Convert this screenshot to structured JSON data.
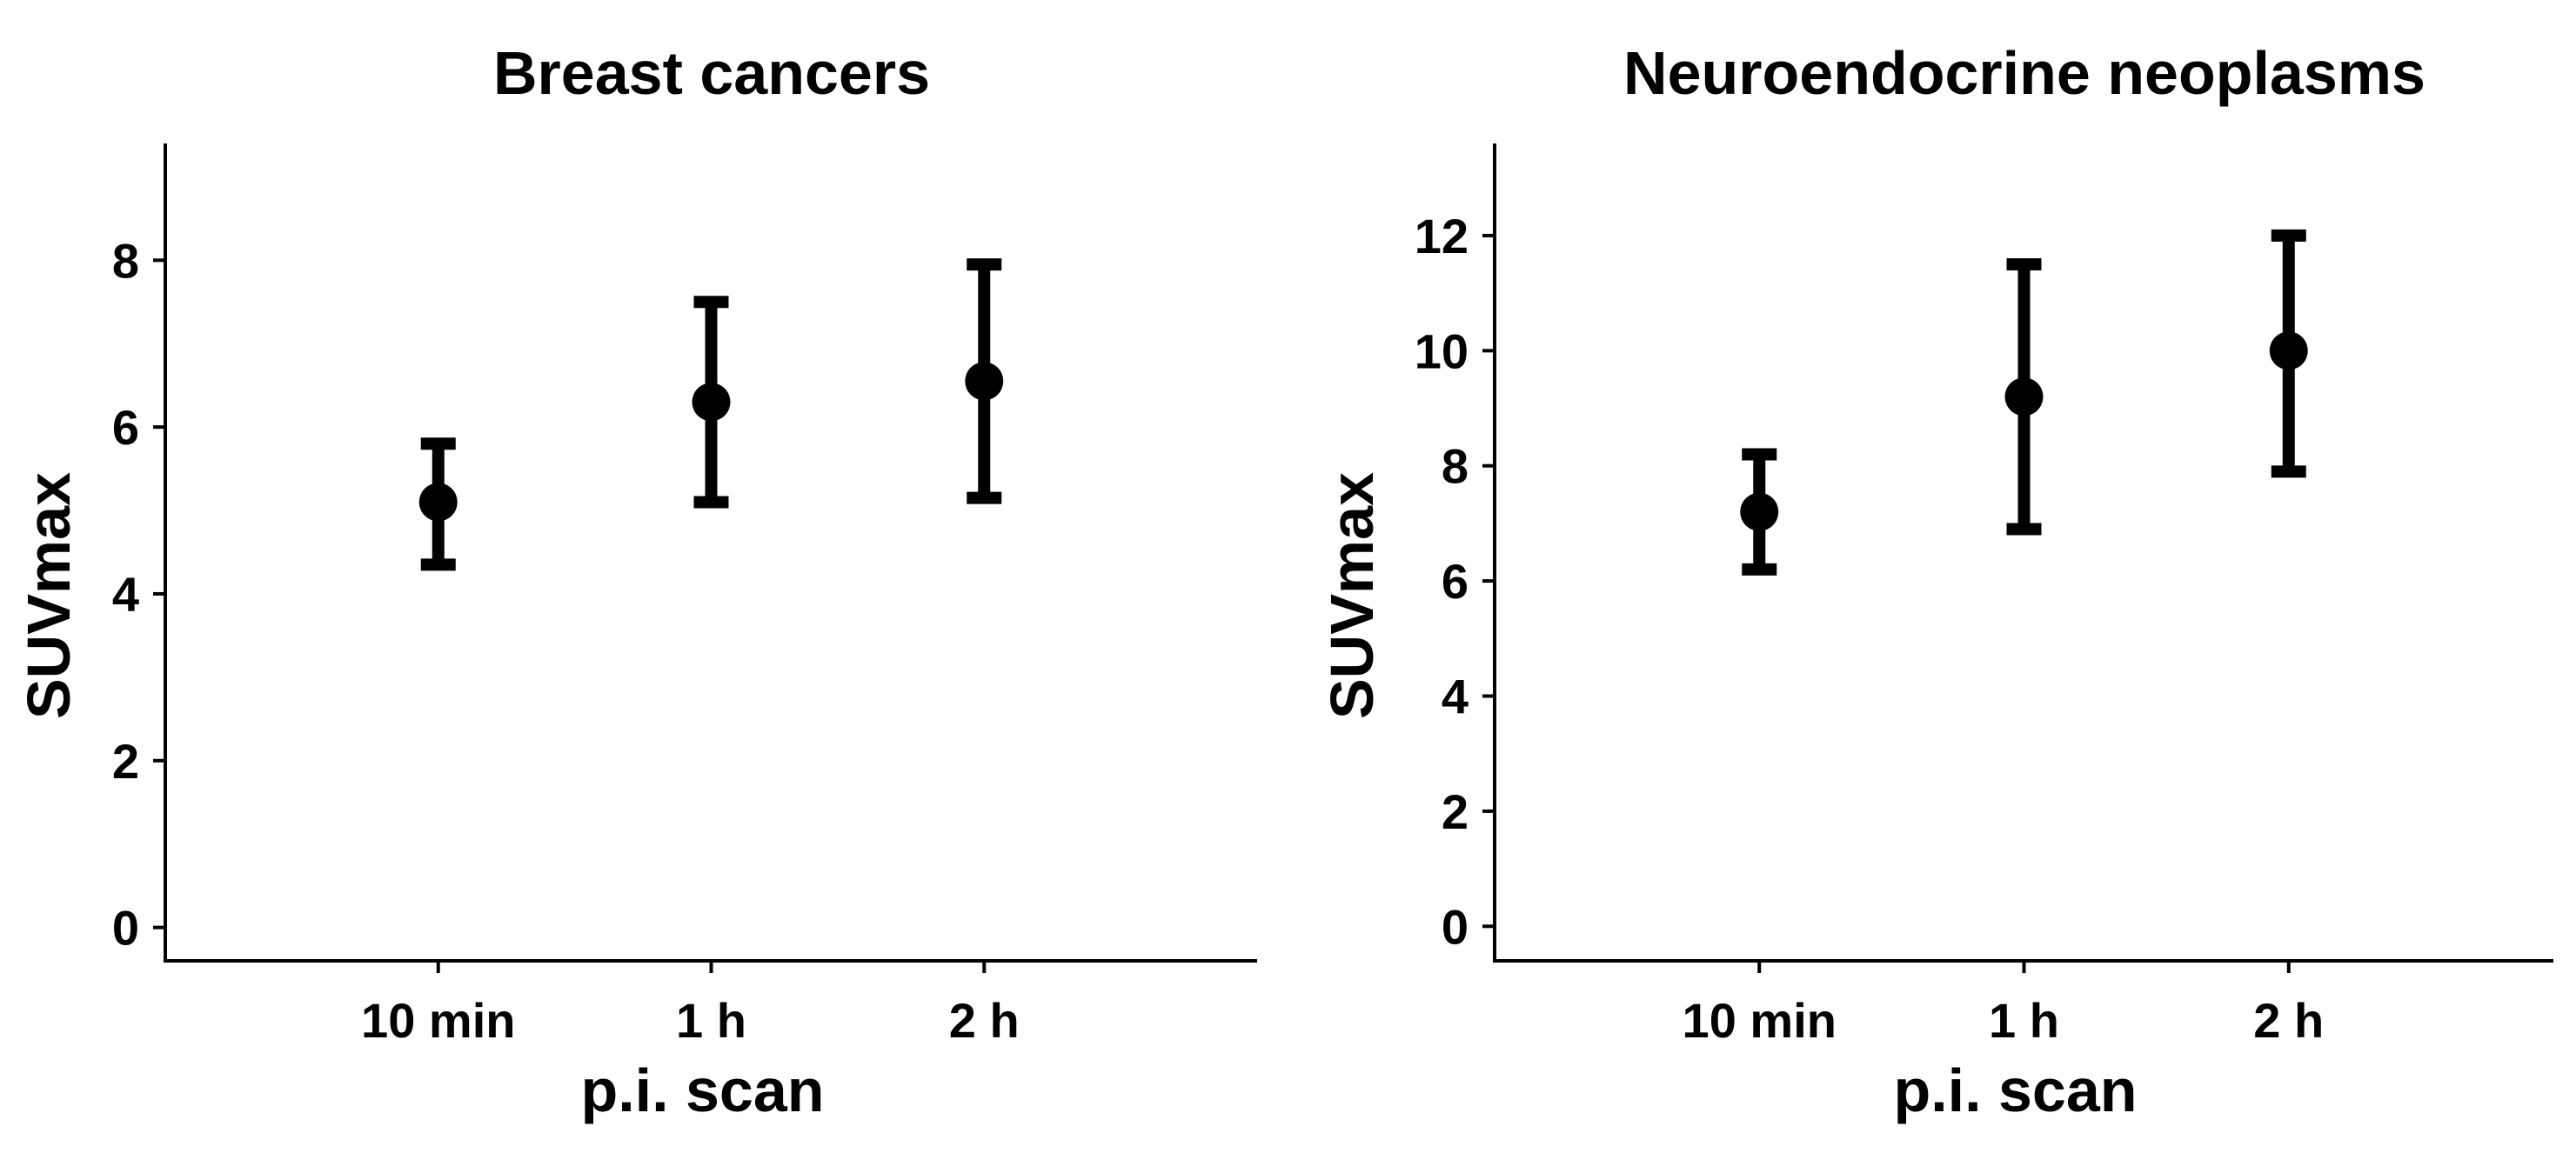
{
  "chart_data": [
    {
      "type": "scatter",
      "title": "Breast cancers",
      "xlabel": "p.i. scan",
      "ylabel": "SUVmax",
      "categories": [
        "10 min",
        "1 h",
        "2 h"
      ],
      "ylim": [
        -0.4,
        9.4
      ],
      "yticks": [
        0,
        2,
        4,
        6,
        8
      ],
      "grid": false,
      "series": [
        {
          "values": [
            5.1,
            6.3,
            6.55
          ],
          "error_low": [
            4.35,
            5.1,
            5.15
          ],
          "error_high": [
            5.8,
            7.5,
            7.95
          ]
        }
      ]
    },
    {
      "type": "scatter",
      "title": "Neuroendocrine neoplasms",
      "xlabel": "p.i. scan",
      "ylabel": "SUVmax",
      "categories": [
        "10 min",
        "1 h",
        "2 h"
      ],
      "ylim": [
        -0.6,
        13.6
      ],
      "yticks": [
        0,
        2,
        4,
        6,
        8,
        10,
        12
      ],
      "grid": false,
      "series": [
        {
          "values": [
            7.2,
            9.2,
            10.0
          ],
          "error_low": [
            6.2,
            6.9,
            7.9
          ],
          "error_high": [
            8.2,
            11.5,
            12.0
          ]
        }
      ]
    }
  ]
}
